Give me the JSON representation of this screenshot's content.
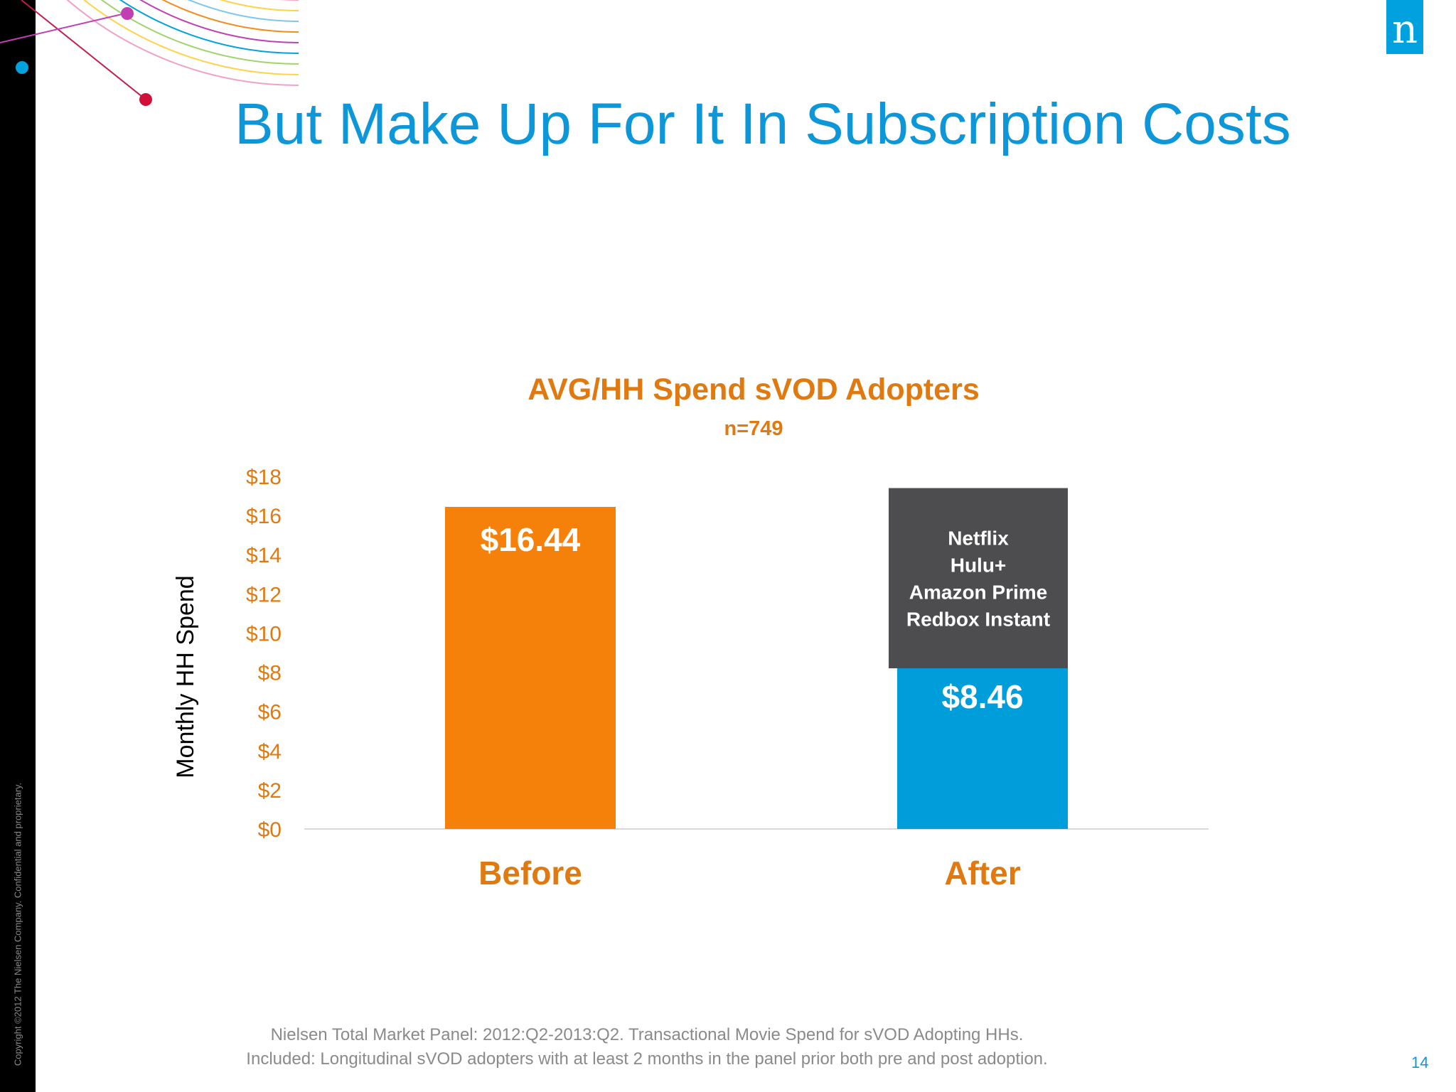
{
  "slide": {
    "title": "But Make Up For It In Subscription Costs",
    "copyright": "Copyright ©2012 The Nielsen Company. Confidential and proprietary.",
    "logo_letter": "n",
    "footnote_lines": [
      "Nielsen Total Market Panel: 2012:Q2-2013:Q2. Transactional Movie Spend for sVOD Adopting HHs.",
      "Included: Longitudinal sVOD adopters with at least 2 months in the panel prior both pre and post adoption."
    ],
    "page_number": "14"
  },
  "colors": {
    "title_blue": "#0e97d8",
    "orange": "#f5800a",
    "label_orange": "#e07a10",
    "blue": "#009ddb",
    "dark_grey": "#4d4d4f",
    "logo_blue": "#00a1de"
  },
  "chart_data": {
    "type": "bar",
    "title": "AVG/HH Spend sVOD Adopters",
    "subtitle": "n=749",
    "ylabel": "Monthly HH Spend",
    "xlabel": "",
    "ylim": [
      0,
      18
    ],
    "yticks": [
      0,
      2,
      4,
      6,
      8,
      10,
      12,
      14,
      16,
      18
    ],
    "ytick_labels": [
      "$0",
      "$2",
      "$4",
      "$6",
      "$8",
      "$10",
      "$12",
      "$14",
      "$16",
      "$18"
    ],
    "categories": [
      "Before",
      "After"
    ],
    "bars": [
      {
        "category": "Before",
        "value": 16.44,
        "label": "$16.44",
        "color": "#f5800a"
      },
      {
        "category": "After",
        "value": 8.46,
        "label": "$8.46",
        "color": "#009ddb"
      }
    ],
    "callout": {
      "attached_to": "After",
      "bottom_value": 8.2,
      "top_value": 17.4,
      "color": "#4d4d4f",
      "lines": [
        "Netflix",
        "Hulu+",
        "Amazon Prime",
        "Redbox Instant"
      ]
    },
    "grid": false,
    "legend": "none"
  }
}
